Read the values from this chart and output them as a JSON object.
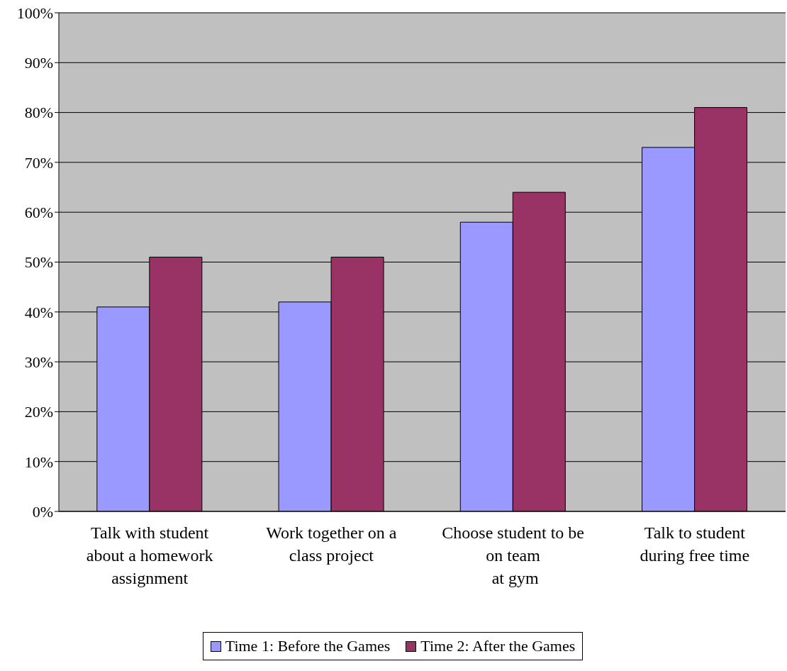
{
  "chart_data": {
    "type": "bar",
    "categories": [
      "Talk with student\nabout a homework\nassignment",
      "Work together on a\nclass project",
      "Choose student to be\non team\n at gym",
      "Talk to student\nduring free time"
    ],
    "series": [
      {
        "name": "Time 1: Before the Games",
        "color": "#9999ff",
        "values": [
          41,
          42,
          58,
          73
        ]
      },
      {
        "name": "Time 2: After the Games",
        "color": "#993366",
        "values": [
          51,
          51,
          64,
          81
        ]
      }
    ],
    "ylim": [
      0,
      100
    ],
    "yticks": [
      {
        "value": 0,
        "label": "0%"
      },
      {
        "value": 10,
        "label": "10%"
      },
      {
        "value": 20,
        "label": "20%"
      },
      {
        "value": 30,
        "label": "30%"
      },
      {
        "value": 40,
        "label": "40%"
      },
      {
        "value": 50,
        "label": "50%"
      },
      {
        "value": 60,
        "label": "60%"
      },
      {
        "value": 70,
        "label": "70%"
      },
      {
        "value": 80,
        "label": "80%"
      },
      {
        "value": 90,
        "label": "90%"
      },
      {
        "value": 100,
        "label": "100%"
      }
    ],
    "grid": "y",
    "legend": "bottom"
  }
}
